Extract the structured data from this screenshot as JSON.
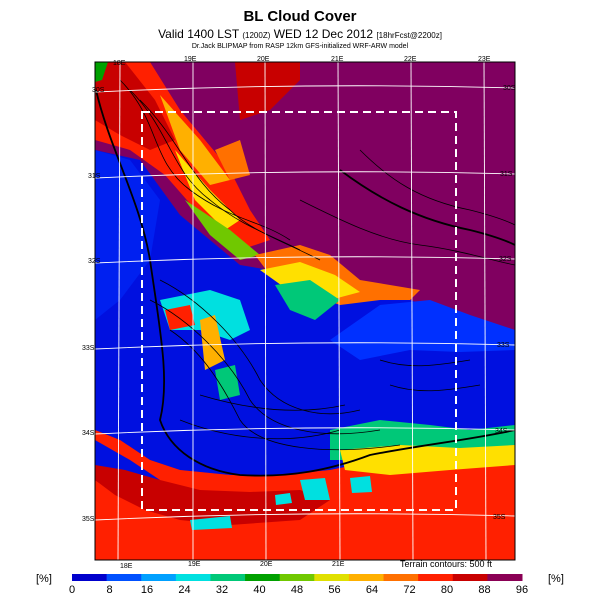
{
  "header": {
    "title": "BL Cloud Cover",
    "valid_line": "Valid 1400 LST",
    "valid_small_1": "(1200Z)",
    "valid_date": "WED 12 Dec 2012",
    "valid_small_2": "[18hrFcst@2200z]",
    "model_line": "Dr.Jack BLIPMAP from RASP 12km GFS-initialized WRF-ARW model"
  },
  "map": {
    "longitude_labels_top": [
      "18E",
      "19E",
      "20E",
      "21E",
      "22E",
      "23E"
    ],
    "longitude_labels_bottom": [
      "18E",
      "19E",
      "20E",
      "21E"
    ],
    "latitude_labels_left": [
      "30S",
      "31S",
      "32S",
      "33S",
      "34S",
      "35S"
    ],
    "latitude_labels_right": [
      "30S",
      "31S",
      "32S",
      "33S",
      "34S",
      "35S"
    ],
    "terrain_note": "Terrain contours: 500 ft"
  },
  "colorbar": {
    "unit_left": "[%]",
    "unit_right": "[%]",
    "ticks": [
      "0",
      "8",
      "16",
      "24",
      "32",
      "40",
      "48",
      "56",
      "64",
      "72",
      "80",
      "88",
      "96"
    ],
    "colors": [
      "#0000cc",
      "#0050ff",
      "#00a0ff",
      "#00e0e0",
      "#00c878",
      "#00a000",
      "#70c800",
      "#e0e000",
      "#ffb000",
      "#ff7000",
      "#ff2000",
      "#c80000",
      "#8a0055"
    ]
  },
  "colors": {
    "purple": "#800060",
    "dark_red": "#c80000",
    "red": "#ff2000",
    "orange": "#ff8000",
    "yellow": "#ffd400",
    "green": "#00b040",
    "cyan": "#00d8e8",
    "light_blue": "#0070ff",
    "blue": "#0010e0"
  }
}
